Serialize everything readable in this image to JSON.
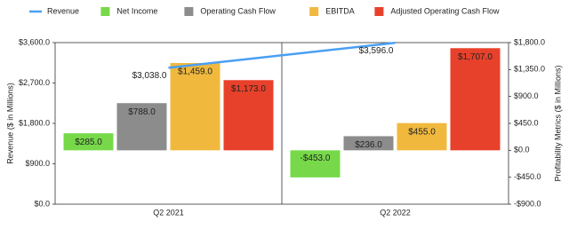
{
  "chart_data": {
    "type": "bar-line",
    "categories": [
      "Q2 2021",
      "Q2 2022"
    ],
    "y_label": "Revenue ($ in Millions)",
    "y2_label": "Profitability Metrics ($ in Millions)",
    "ylim": [
      0,
      3600
    ],
    "yticks": [
      {
        "value": 0,
        "label": "$0.0"
      },
      {
        "value": 900,
        "label": "$900.0"
      },
      {
        "value": 1800,
        "label": "$1,800.0"
      },
      {
        "value": 2700,
        "label": "$2,700.0"
      },
      {
        "value": 3600,
        "label": "$3,600.0"
      }
    ],
    "y2lim": [
      -900,
      1800
    ],
    "y2ticks": [
      {
        "value": -900,
        "label": "-$900.0"
      },
      {
        "value": -450,
        "label": "-$450.0"
      },
      {
        "value": 0,
        "label": "$0.0"
      },
      {
        "value": 450,
        "label": "$450.0"
      },
      {
        "value": 900,
        "label": "$900.0"
      },
      {
        "value": 1350,
        "label": "$1,350.0"
      },
      {
        "value": 1800,
        "label": "$1,800.0"
      }
    ],
    "legend": "top",
    "series": [
      {
        "name": "Revenue",
        "type": "line",
        "color": "#4a9ff5",
        "values": [
          3038.0,
          3596.0
        ],
        "value_labels": [
          "$3,038.0",
          "$3,596.0"
        ]
      },
      {
        "name": "Net Income",
        "type": "bar",
        "axis": "y2",
        "color": "#77d94a",
        "values": [
          285.0,
          -453.0
        ],
        "value_labels": [
          "$285.0",
          "-$453.0"
        ]
      },
      {
        "name": "Operating Cash Flow",
        "type": "bar",
        "axis": "y2",
        "color": "#8c8c8c",
        "values": [
          788.0,
          236.0
        ],
        "value_labels": [
          "$788.0",
          "$236.0"
        ]
      },
      {
        "name": "EBITDA",
        "type": "bar",
        "axis": "y2",
        "color": "#f0b93e",
        "values": [
          1459.0,
          455.0
        ],
        "value_labels": [
          "$1,459.0",
          "$455.0"
        ]
      },
      {
        "name": "Adjusted Operating Cash Flow",
        "type": "bar",
        "axis": "y2",
        "color": "#e8412b",
        "values": [
          1173.0,
          1707.0
        ],
        "value_labels": [
          "$1,173.0",
          "$1,707.0"
        ]
      }
    ]
  }
}
